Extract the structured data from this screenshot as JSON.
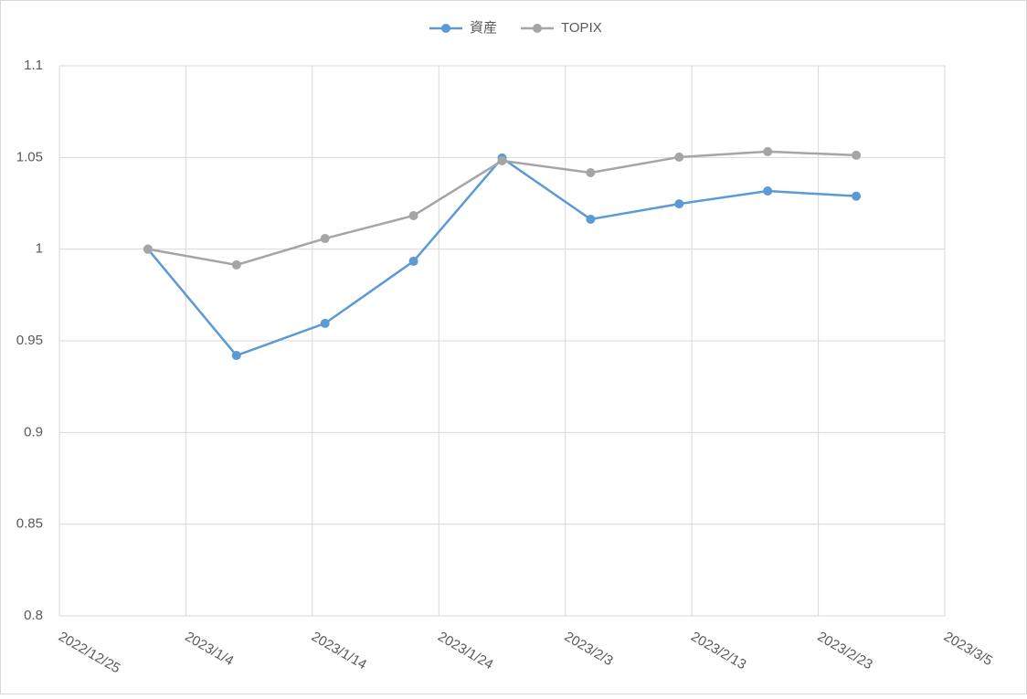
{
  "chart_data": {
    "type": "line",
    "x": [
      "2023/1/1",
      "2023/1/8",
      "2023/1/15",
      "2023/1/22",
      "2023/1/29",
      "2023/2/5",
      "2023/2/12",
      "2023/2/19",
      "2023/2/26"
    ],
    "series": [
      {
        "name": "資産",
        "color": "#5b9bd5",
        "values": [
          1.0,
          0.942,
          0.9595,
          0.9934,
          1.0497,
          1.0163,
          1.0247,
          1.0317,
          1.0289
        ]
      },
      {
        "name": "TOPIX",
        "color": "#a5a5a5",
        "values": [
          1.0,
          0.9914,
          1.0058,
          1.0183,
          1.0482,
          1.0417,
          1.0502,
          1.0532,
          1.0512
        ]
      }
    ],
    "xlim": [
      "2022/12/25",
      "2023/3/5"
    ],
    "xticks": [
      "2022/12/25",
      "2023/1/4",
      "2023/1/14",
      "2023/1/24",
      "2023/2/3",
      "2023/2/13",
      "2023/2/23",
      "2023/3/5"
    ],
    "ylim": [
      0.8,
      1.1
    ],
    "yticks": [
      0.8,
      0.85,
      0.9,
      0.95,
      1,
      1.05,
      1.1
    ],
    "grid": true,
    "legend": "top"
  }
}
